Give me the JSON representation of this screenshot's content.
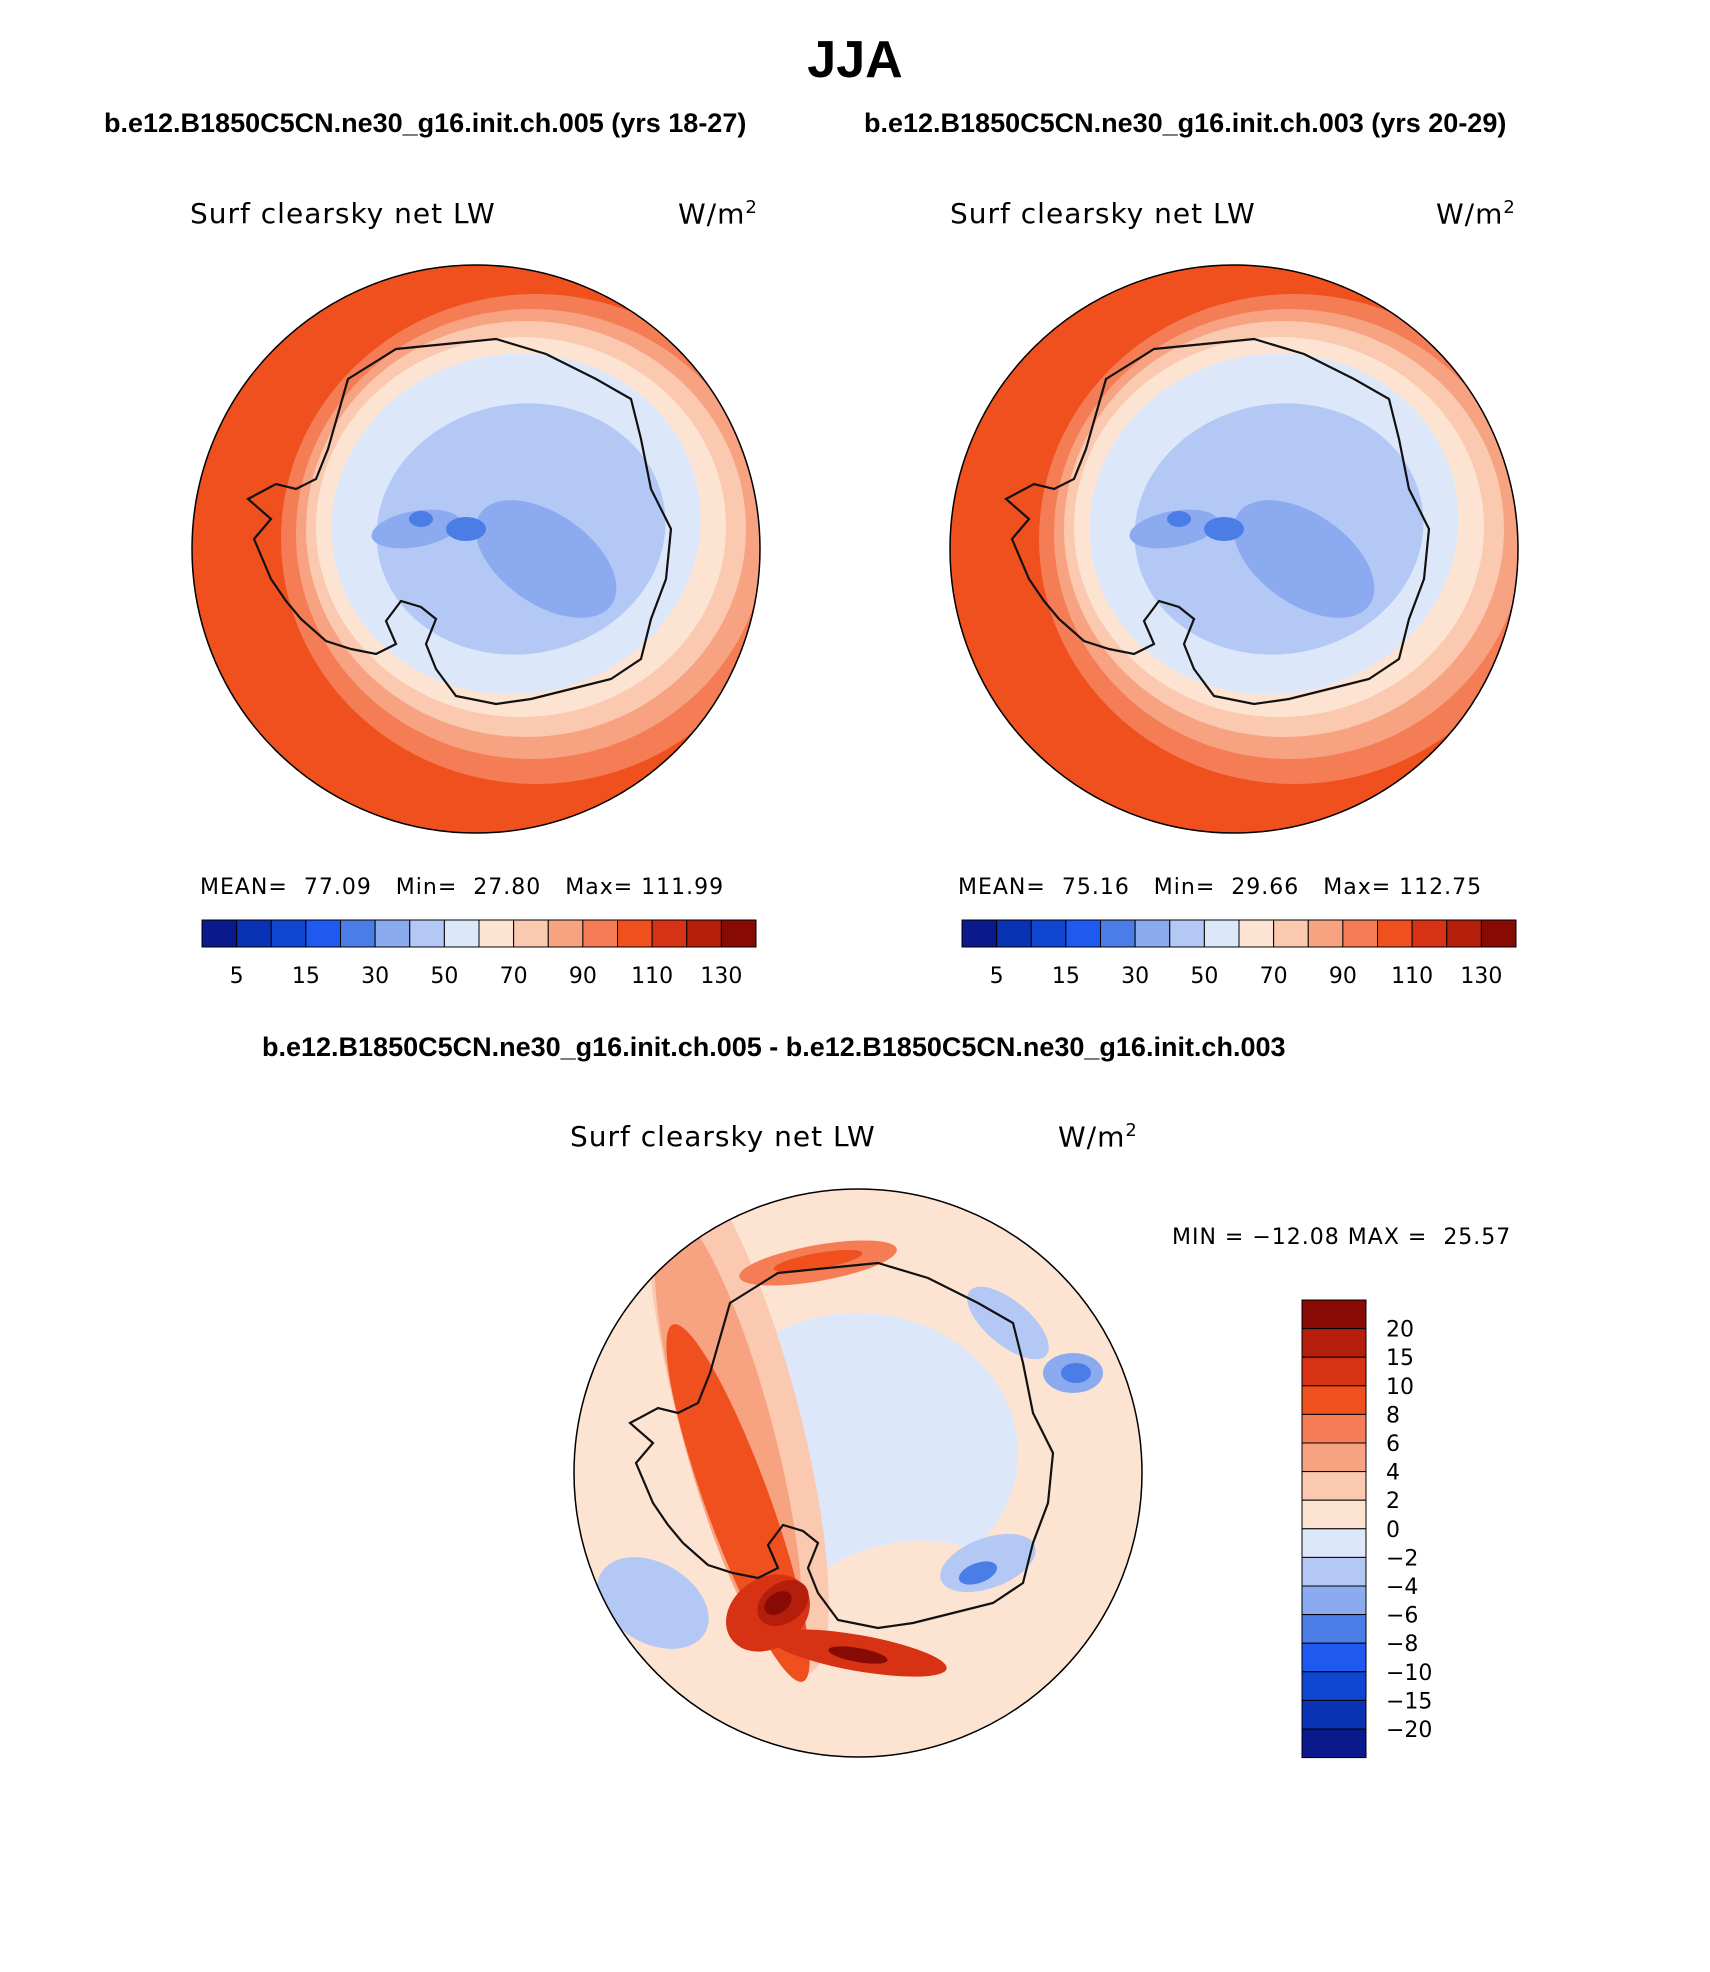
{
  "title": "JJA",
  "panels": [
    {
      "caption": "b.e12.B1850C5CN.ne30_g16.init.ch.005 (yrs 18-27)",
      "variable": "Surf clearsky net LW",
      "units_base": "W/m",
      "units_exp": "2",
      "mean_label": "MEAN=",
      "mean": "77.09",
      "min_label": "Min=",
      "min": "27.80",
      "max_label": "Max=",
      "max": "111.99"
    },
    {
      "caption": "b.e12.B1850C5CN.ne30_g16.init.ch.003 (yrs 20-29)",
      "variable": "Surf clearsky net LW",
      "units_base": "W/m",
      "units_exp": "2",
      "mean_label": "MEAN=",
      "mean": "75.16",
      "min_label": "Min=",
      "min": "29.66",
      "max_label": "Max=",
      "max": "112.75"
    }
  ],
  "diff": {
    "caption": "b.e12.B1850C5CN.ne30_g16.init.ch.005 - b.e12.B1850C5CN.ne30_g16.init.ch.003",
    "variable": "Surf clearsky net LW",
    "units_base": "W/m",
    "units_exp": "2",
    "min_label": "MIN =",
    "min": "−12.08",
    "max_label": "MAX =",
    "max": "25.57"
  },
  "chart_data": [
    {
      "type": "heatmap",
      "title": "Surf clearsky net LW",
      "units": "W/m2",
      "projection": "south polar stereographic",
      "colorbar_labels": [
        "5",
        "15",
        "30",
        "50",
        "70",
        "90",
        "110",
        "130"
      ],
      "colors": [
        "#0a1a8c",
        "#0a32b4",
        "#0f46d2",
        "#1e5af0",
        "#4b7de6",
        "#8caaf0",
        "#b4c8f5",
        "#dce8fa",
        "#fde4d2",
        "#fbc8b0",
        "#f7a382",
        "#f57d55",
        "#f0501e",
        "#d73214",
        "#b41e0a",
        "#870a05"
      ],
      "stats": {
        "mean": 77.09,
        "min": 27.8,
        "max": 111.99
      }
    },
    {
      "type": "heatmap",
      "title": "Surf clearsky net LW",
      "units": "W/m2",
      "projection": "south polar stereographic",
      "colorbar_labels": [
        "5",
        "15",
        "30",
        "50",
        "70",
        "90",
        "110",
        "130"
      ],
      "colors": [
        "#0a1a8c",
        "#0a32b4",
        "#0f46d2",
        "#1e5af0",
        "#4b7de6",
        "#8caaf0",
        "#b4c8f5",
        "#dce8fa",
        "#fde4d2",
        "#fbc8b0",
        "#f7a382",
        "#f57d55",
        "#f0501e",
        "#d73214",
        "#b41e0a",
        "#870a05"
      ],
      "stats": {
        "mean": 75.16,
        "min": 29.66,
        "max": 112.75
      }
    },
    {
      "type": "heatmap",
      "title": "Surf clearsky net LW",
      "units": "W/m2",
      "projection": "south polar stereographic",
      "colorbar_labels": [
        "20",
        "15",
        "10",
        "8",
        "6",
        "4",
        "2",
        "0",
        "−2",
        "−4",
        "−6",
        "−8",
        "−10",
        "−15",
        "−20"
      ],
      "colors": [
        "#870a05",
        "#b41e0a",
        "#d73214",
        "#f0501e",
        "#f57d55",
        "#f7a382",
        "#fbc8b0",
        "#fde4d2",
        "#dce8fa",
        "#b4c8f5",
        "#8caaf0",
        "#4b7de6",
        "#1e5af0",
        "#0f46d2",
        "#0a32b4",
        "#0a1a8c"
      ],
      "stats": {
        "min": -12.08,
        "max": 25.57
      }
    }
  ]
}
